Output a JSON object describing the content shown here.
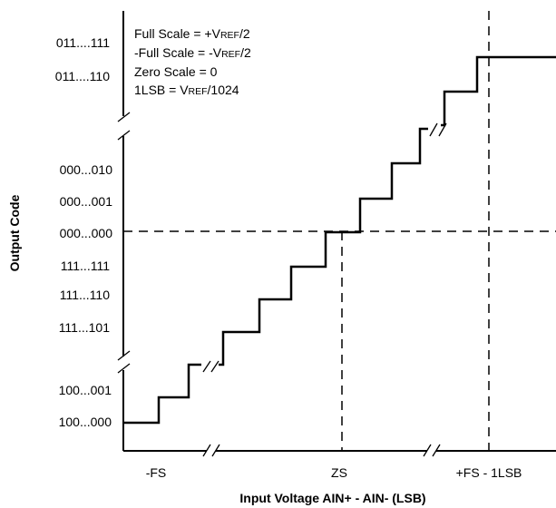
{
  "diagram": {
    "y_axis_title": "Output Code",
    "x_axis_title": "Input Voltage AIN+ - AIN- (LSB)",
    "y_codes": [
      "011....111",
      "011....110",
      "000...010",
      "000...001",
      "000...000",
      "111...111",
      "111...110",
      "111...101",
      "100...001",
      "100...000"
    ],
    "x_labels": [
      "-FS",
      "ZS",
      "+FS - 1LSB"
    ],
    "legend": {
      "full_scale_prefix": "Full Scale = +V",
      "neg_full_scale_prefix": "-Full Scale = -V",
      "ref_sub": "REF",
      "over_two": "/2",
      "zero_scale": "Zero Scale = 0",
      "lsb_prefix": "1LSB = V",
      "over_1024": "/1024"
    }
  }
}
